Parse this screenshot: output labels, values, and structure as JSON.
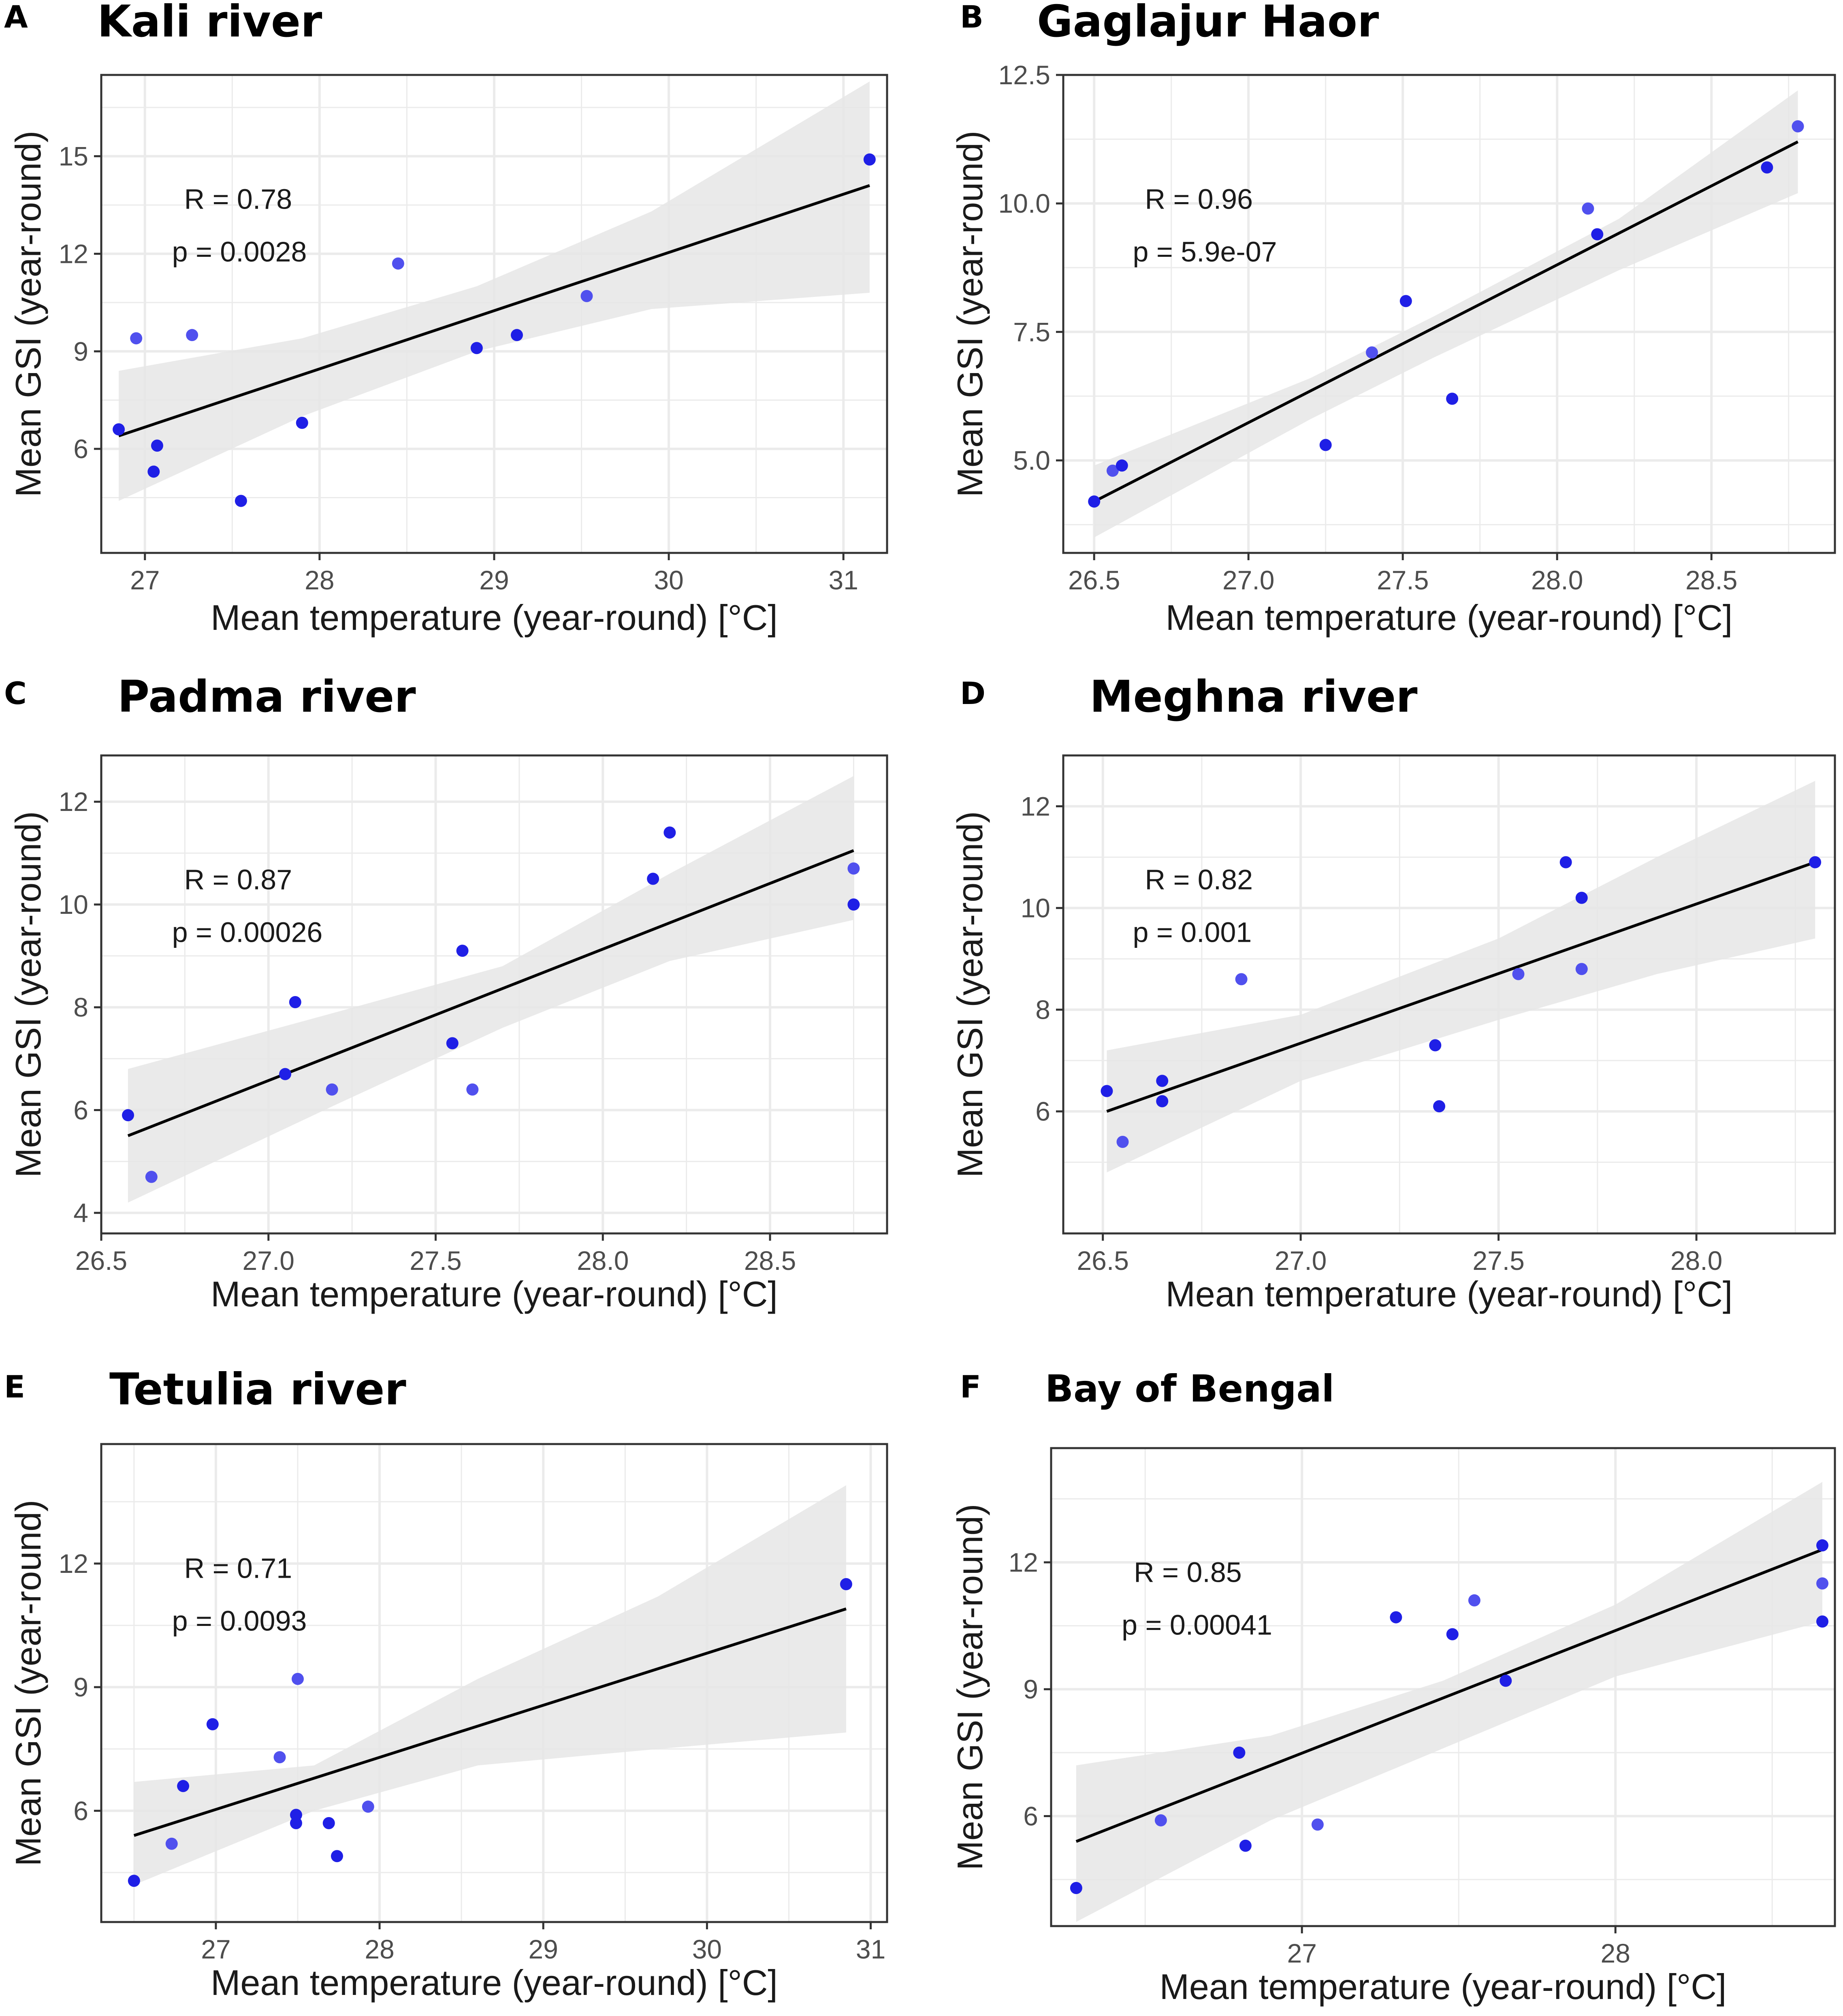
{
  "colors": {
    "point": "#1f1fe6",
    "point_light": "#5050ee",
    "line": "#000000",
    "band": "#e6e6e6",
    "grid": "#ebebeb"
  },
  "chart_data": [
    {
      "type": "scatter",
      "panel": "A",
      "title": "Kali river",
      "xlabel": "Mean temperature (year-round) [°C]",
      "ylabel": "Mean GSI (year-round)",
      "xlim": [
        26.75,
        31.25
      ],
      "ylim": [
        2.8,
        17.5
      ],
      "xticks": [
        27,
        28,
        29,
        30,
        31
      ],
      "xtick_labels": [
        "27",
        "28",
        "29",
        "30",
        "31"
      ],
      "yticks": [
        6,
        9,
        12,
        15
      ],
      "ytick_labels": [
        "6",
        "9",
        "12",
        "15"
      ],
      "grid": true,
      "points": [
        {
          "x": 26.85,
          "y": 6.6
        },
        {
          "x": 26.95,
          "y": 9.4
        },
        {
          "x": 27.05,
          "y": 5.3
        },
        {
          "x": 27.07,
          "y": 6.1
        },
        {
          "x": 27.27,
          "y": 9.5
        },
        {
          "x": 27.55,
          "y": 4.4
        },
        {
          "x": 27.9,
          "y": 6.8
        },
        {
          "x": 28.45,
          "y": 11.7
        },
        {
          "x": 28.9,
          "y": 9.1
        },
        {
          "x": 29.13,
          "y": 9.5
        },
        {
          "x": 29.53,
          "y": 10.7
        },
        {
          "x": 31.15,
          "y": 14.9
        }
      ],
      "fit": {
        "x": [
          26.85,
          31.15
        ],
        "y": [
          6.4,
          14.1
        ]
      },
      "ci_band": {
        "x": [
          26.85,
          27.9,
          28.9,
          29.9,
          31.15
        ],
        "lower": [
          4.4,
          7.0,
          9.0,
          10.3,
          10.8
        ],
        "upper": [
          8.4,
          9.4,
          11.0,
          13.3,
          17.3
        ]
      },
      "annotation": {
        "r_label": "R = 0.78",
        "p_label": "p = 0.0028"
      }
    },
    {
      "type": "scatter",
      "panel": "B",
      "title": "Gaglajur Haor",
      "xlabel": "Mean temperature (year-round) [°C]",
      "ylabel": "Mean GSI (year-round)",
      "xlim": [
        26.4,
        28.9
      ],
      "ylim": [
        3.2,
        12.5
      ],
      "xticks": [
        26.5,
        27.0,
        27.5,
        28.0,
        28.5
      ],
      "xtick_labels": [
        "26.5",
        "27.0",
        "27.5",
        "28.0",
        "28.5"
      ],
      "yticks": [
        5.0,
        7.5,
        10.0,
        12.5
      ],
      "ytick_labels": [
        "5.0",
        "7.5",
        "10.0",
        "12.5"
      ],
      "grid": true,
      "points": [
        {
          "x": 26.5,
          "y": 4.2
        },
        {
          "x": 26.56,
          "y": 4.8
        },
        {
          "x": 26.59,
          "y": 4.9
        },
        {
          "x": 27.25,
          "y": 5.3
        },
        {
          "x": 27.4,
          "y": 7.1
        },
        {
          "x": 27.51,
          "y": 8.1
        },
        {
          "x": 27.66,
          "y": 6.2
        },
        {
          "x": 28.1,
          "y": 9.9
        },
        {
          "x": 28.13,
          "y": 9.4
        },
        {
          "x": 28.68,
          "y": 10.7
        },
        {
          "x": 28.78,
          "y": 11.5
        }
      ],
      "fit": {
        "x": [
          26.5,
          28.78
        ],
        "y": [
          4.2,
          11.2
        ]
      },
      "ci_band": {
        "x": [
          26.5,
          27.2,
          27.6,
          28.2,
          28.78
        ],
        "lower": [
          3.5,
          5.8,
          7.0,
          8.7,
          10.2
        ],
        "upper": [
          4.9,
          6.6,
          7.8,
          9.7,
          12.2
        ]
      },
      "annotation": {
        "r_label": "R = 0.96",
        "p_label": "p = 5.9e-07"
      }
    },
    {
      "type": "scatter",
      "panel": "C",
      "title": "Padma river",
      "xlabel": "Mean temperature (year-round) [°C]",
      "ylabel": "Mean GSI (year-round)",
      "xlim": [
        26.5,
        28.85
      ],
      "ylim": [
        3.6,
        12.9
      ],
      "xticks": [
        26.5,
        27.0,
        27.5,
        28.0,
        28.5
      ],
      "xtick_labels": [
        "26.5",
        "27.0",
        "27.5",
        "28.0",
        "28.5"
      ],
      "yticks": [
        4,
        6,
        8,
        10,
        12
      ],
      "ytick_labels": [
        "4",
        "6",
        "8",
        "10",
        "12"
      ],
      "grid": true,
      "points": [
        {
          "x": 26.58,
          "y": 5.9
        },
        {
          "x": 26.65,
          "y": 4.7
        },
        {
          "x": 27.05,
          "y": 6.7
        },
        {
          "x": 27.08,
          "y": 8.1
        },
        {
          "x": 27.19,
          "y": 6.4
        },
        {
          "x": 27.55,
          "y": 7.3
        },
        {
          "x": 27.58,
          "y": 9.1
        },
        {
          "x": 27.61,
          "y": 6.4
        },
        {
          "x": 28.15,
          "y": 10.5
        },
        {
          "x": 28.2,
          "y": 11.4
        },
        {
          "x": 28.75,
          "y": 10.7
        },
        {
          "x": 28.75,
          "y": 10.0
        }
      ],
      "fit": {
        "x": [
          26.58,
          28.75
        ],
        "y": [
          5.5,
          11.05
        ]
      },
      "ci_band": {
        "x": [
          26.58,
          27.2,
          27.7,
          28.2,
          28.75
        ],
        "lower": [
          4.2,
          6.1,
          7.6,
          8.9,
          9.7
        ],
        "upper": [
          6.8,
          7.9,
          8.8,
          10.6,
          12.5
        ]
      },
      "annotation": {
        "r_label": "R = 0.87",
        "p_label": "p = 0.00026"
      }
    },
    {
      "type": "scatter",
      "panel": "D",
      "title": "Meghna river",
      "xlabel": "Mean temperature (year-round) [°C]",
      "ylabel": "Mean GSI (year-round)",
      "xlim": [
        26.4,
        28.35
      ],
      "ylim": [
        3.6,
        13.0
      ],
      "xticks": [
        26.5,
        27.0,
        27.5,
        28.0
      ],
      "xtick_labels": [
        "26.5",
        "27.0",
        "27.5",
        "28.0"
      ],
      "yticks": [
        6,
        8,
        10,
        12
      ],
      "ytick_labels": [
        "6",
        "8",
        "10",
        "12"
      ],
      "grid": true,
      "points": [
        {
          "x": 26.51,
          "y": 6.4
        },
        {
          "x": 26.55,
          "y": 5.4
        },
        {
          "x": 26.65,
          "y": 6.6
        },
        {
          "x": 26.65,
          "y": 6.2
        },
        {
          "x": 26.85,
          "y": 8.6
        },
        {
          "x": 27.34,
          "y": 7.3
        },
        {
          "x": 27.35,
          "y": 6.1
        },
        {
          "x": 27.55,
          "y": 8.7
        },
        {
          "x": 27.67,
          "y": 10.9
        },
        {
          "x": 27.71,
          "y": 10.2
        },
        {
          "x": 27.71,
          "y": 8.8
        },
        {
          "x": 28.3,
          "y": 10.9
        }
      ],
      "fit": {
        "x": [
          26.51,
          28.3
        ],
        "y": [
          6.0,
          10.9
        ]
      },
      "ci_band": {
        "x": [
          26.51,
          27.0,
          27.5,
          27.9,
          28.3
        ],
        "lower": [
          4.8,
          6.6,
          7.8,
          8.7,
          9.4
        ],
        "upper": [
          7.2,
          7.9,
          9.4,
          11.0,
          12.5
        ]
      },
      "annotation": {
        "r_label": "R = 0.82",
        "p_label": "p = 0.001"
      }
    },
    {
      "type": "scatter",
      "panel": "E",
      "title": "Tetulia river",
      "xlabel": "Mean temperature (year-round) [°C]",
      "ylabel": "Mean GSI (year-round)",
      "xlim": [
        26.3,
        31.1
      ],
      "ylim": [
        3.3,
        14.9
      ],
      "xticks": [
        27,
        28,
        29,
        30,
        31
      ],
      "xtick_labels": [
        "27",
        "28",
        "29",
        "30",
        "31"
      ],
      "yticks": [
        6,
        9,
        12
      ],
      "ytick_labels": [
        "6",
        "9",
        "12"
      ],
      "grid": true,
      "points": [
        {
          "x": 26.5,
          "y": 4.3
        },
        {
          "x": 26.73,
          "y": 5.2
        },
        {
          "x": 26.8,
          "y": 6.6
        },
        {
          "x": 26.98,
          "y": 8.1
        },
        {
          "x": 27.39,
          "y": 7.3
        },
        {
          "x": 27.49,
          "y": 5.9
        },
        {
          "x": 27.49,
          "y": 5.7
        },
        {
          "x": 27.5,
          "y": 9.2
        },
        {
          "x": 27.69,
          "y": 5.7
        },
        {
          "x": 27.74,
          "y": 4.9
        },
        {
          "x": 27.93,
          "y": 6.1
        },
        {
          "x": 30.85,
          "y": 11.5
        }
      ],
      "fit": {
        "x": [
          26.5,
          30.85
        ],
        "y": [
          5.4,
          10.9
        ]
      },
      "ci_band": {
        "x": [
          26.5,
          27.6,
          28.6,
          29.7,
          30.85
        ],
        "lower": [
          4.2,
          6.0,
          7.1,
          7.5,
          7.9
        ],
        "upper": [
          6.7,
          7.1,
          9.2,
          11.2,
          13.9
        ]
      },
      "annotation": {
        "r_label": "R = 0.71",
        "p_label": "p = 0.0093"
      }
    },
    {
      "type": "scatter",
      "panel": "F",
      "title": "Bay of Bengal",
      "xlabel": "Mean temperature (year-round) [°C]",
      "ylabel": "Mean GSI (year-round)",
      "xlim": [
        26.2,
        28.7
      ],
      "ylim": [
        3.4,
        14.7
      ],
      "xticks": [
        27,
        28
      ],
      "xtick_labels": [
        "27",
        "28"
      ],
      "yticks": [
        6,
        9,
        12
      ],
      "ytick_labels": [
        "6",
        "9",
        "12"
      ],
      "grid": true,
      "points": [
        {
          "x": 26.28,
          "y": 4.3
        },
        {
          "x": 26.55,
          "y": 5.9
        },
        {
          "x": 26.8,
          "y": 7.5
        },
        {
          "x": 26.82,
          "y": 5.3
        },
        {
          "x": 27.05,
          "y": 5.8
        },
        {
          "x": 27.3,
          "y": 10.7
        },
        {
          "x": 27.48,
          "y": 10.3
        },
        {
          "x": 27.55,
          "y": 11.1
        },
        {
          "x": 27.65,
          "y": 9.2
        },
        {
          "x": 28.66,
          "y": 12.4
        },
        {
          "x": 28.66,
          "y": 11.5
        },
        {
          "x": 28.66,
          "y": 10.6
        }
      ],
      "fit": {
        "x": [
          26.28,
          28.66
        ],
        "y": [
          5.4,
          12.3
        ]
      },
      "ci_band": {
        "x": [
          26.28,
          26.9,
          27.45,
          28.0,
          28.66
        ],
        "lower": [
          3.5,
          5.9,
          7.6,
          9.3,
          10.6
        ],
        "upper": [
          7.2,
          7.9,
          9.2,
          11.0,
          13.9
        ]
      },
      "annotation": {
        "r_label": "R = 0.85",
        "p_label": "p = 0.00041"
      }
    }
  ]
}
